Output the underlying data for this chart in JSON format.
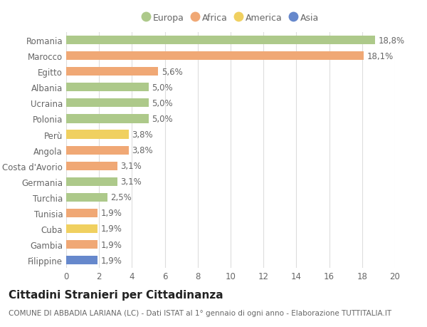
{
  "countries": [
    "Romania",
    "Marocco",
    "Egitto",
    "Albania",
    "Ucraina",
    "Polonia",
    "Perù",
    "Angola",
    "Costa d'Avorio",
    "Germania",
    "Turchia",
    "Tunisia",
    "Cuba",
    "Gambia",
    "Filippine"
  ],
  "values": [
    18.8,
    18.1,
    5.6,
    5.0,
    5.0,
    5.0,
    3.8,
    3.8,
    3.1,
    3.1,
    2.5,
    1.9,
    1.9,
    1.9,
    1.9
  ],
  "labels": [
    "18,8%",
    "18,1%",
    "5,6%",
    "5,0%",
    "5,0%",
    "5,0%",
    "3,8%",
    "3,8%",
    "3,1%",
    "3,1%",
    "2,5%",
    "1,9%",
    "1,9%",
    "1,9%",
    "1,9%"
  ],
  "continents": [
    "Europa",
    "Africa",
    "Africa",
    "Europa",
    "Europa",
    "Europa",
    "America",
    "Africa",
    "Africa",
    "Europa",
    "Europa",
    "Africa",
    "America",
    "Africa",
    "Asia"
  ],
  "continent_colors": {
    "Europa": "#adc98a",
    "Africa": "#f0a875",
    "America": "#f0d060",
    "Asia": "#6688cc"
  },
  "legend_labels": [
    "Europa",
    "Africa",
    "America",
    "Asia"
  ],
  "legend_colors": [
    "#adc98a",
    "#f0a875",
    "#f0d060",
    "#6688cc"
  ],
  "title": "Cittadini Stranieri per Cittadinanza",
  "subtitle": "COMUNE DI ABBADIA LARIANA (LC) - Dati ISTAT al 1° gennaio di ogni anno - Elaborazione TUTTITALIA.IT",
  "xlim": [
    0,
    20
  ],
  "xticks": [
    0,
    2,
    4,
    6,
    8,
    10,
    12,
    14,
    16,
    18,
    20
  ],
  "background_color": "#ffffff",
  "grid_color": "#dddddd",
  "bar_height": 0.55,
  "label_fontsize": 8.5,
  "tick_fontsize": 8.5,
  "title_fontsize": 11,
  "subtitle_fontsize": 7.5,
  "legend_fontsize": 9
}
